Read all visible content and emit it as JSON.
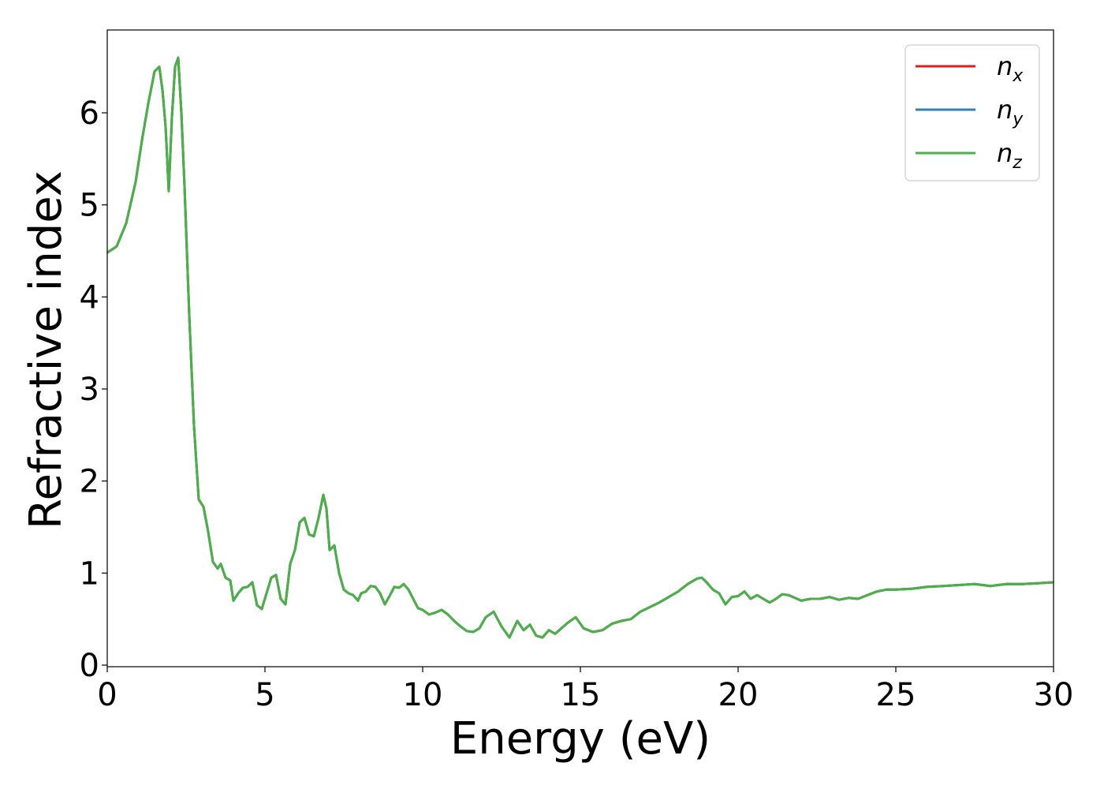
{
  "chart_data": {
    "type": "line",
    "xlabel": "Energy (eV)",
    "ylabel": "Refractive index",
    "xlim": [
      0,
      30
    ],
    "ylim": [
      0,
      6.9
    ],
    "xticks": [
      0,
      5,
      10,
      15,
      20,
      25,
      30
    ],
    "yticks": [
      0,
      1,
      2,
      3,
      4,
      5,
      6
    ],
    "grid": false,
    "legend_position": "top-right",
    "series": [
      {
        "name": "n_x",
        "label_base": "n",
        "label_sub": "x",
        "color": "#e41a1c"
      },
      {
        "name": "n_y",
        "label_base": "n",
        "label_sub": "y",
        "color": "#377eb8"
      },
      {
        "name": "n_z",
        "label_base": "n",
        "label_sub": "z",
        "color": "#4daf4a"
      }
    ],
    "x": [
      0,
      0.3,
      0.6,
      0.9,
      1.1,
      1.3,
      1.5,
      1.65,
      1.75,
      1.85,
      1.95,
      2.05,
      2.15,
      2.25,
      2.35,
      2.45,
      2.6,
      2.75,
      2.9,
      3.05,
      3.2,
      3.35,
      3.5,
      3.6,
      3.75,
      3.9,
      4.0,
      4.15,
      4.3,
      4.45,
      4.6,
      4.75,
      4.9,
      5.05,
      5.2,
      5.35,
      5.5,
      5.65,
      5.8,
      5.95,
      6.1,
      6.25,
      6.4,
      6.55,
      6.7,
      6.85,
      6.95,
      7.05,
      7.2,
      7.35,
      7.5,
      7.65,
      7.8,
      7.95,
      8.05,
      8.2,
      8.35,
      8.5,
      8.65,
      8.8,
      8.95,
      9.1,
      9.25,
      9.4,
      9.55,
      9.7,
      9.85,
      10.0,
      10.2,
      10.4,
      10.6,
      10.8,
      11.0,
      11.2,
      11.4,
      11.6,
      11.8,
      12.0,
      12.25,
      12.5,
      12.75,
      13.0,
      13.2,
      13.4,
      13.6,
      13.8,
      14.0,
      14.2,
      14.4,
      14.6,
      14.85,
      15.1,
      15.4,
      15.7,
      16.0,
      16.3,
      16.6,
      16.9,
      17.2,
      17.5,
      17.8,
      18.1,
      18.4,
      18.7,
      18.85,
      19.0,
      19.2,
      19.4,
      19.6,
      19.8,
      20.0,
      20.2,
      20.4,
      20.6,
      20.8,
      21.0,
      21.2,
      21.4,
      21.6,
      21.8,
      22.0,
      22.3,
      22.6,
      22.9,
      23.2,
      23.5,
      23.8,
      24.1,
      24.4,
      24.7,
      25.0,
      25.5,
      26.0,
      26.5,
      27.0,
      27.5,
      28.0,
      28.5,
      29.0,
      29.5,
      30.0
    ],
    "values": [
      4.48,
      4.55,
      4.8,
      5.25,
      5.7,
      6.1,
      6.45,
      6.5,
      6.25,
      5.85,
      5.15,
      5.95,
      6.5,
      6.6,
      6.0,
      5.2,
      3.8,
      2.6,
      1.8,
      1.72,
      1.45,
      1.12,
      1.05,
      1.1,
      0.95,
      0.92,
      0.7,
      0.78,
      0.84,
      0.85,
      0.9,
      0.65,
      0.61,
      0.78,
      0.95,
      0.98,
      0.72,
      0.66,
      1.1,
      1.25,
      1.55,
      1.6,
      1.42,
      1.4,
      1.6,
      1.85,
      1.7,
      1.25,
      1.3,
      1.0,
      0.82,
      0.78,
      0.76,
      0.7,
      0.78,
      0.8,
      0.86,
      0.85,
      0.78,
      0.66,
      0.75,
      0.85,
      0.84,
      0.88,
      0.82,
      0.72,
      0.62,
      0.6,
      0.55,
      0.57,
      0.6,
      0.55,
      0.48,
      0.42,
      0.37,
      0.36,
      0.4,
      0.52,
      0.58,
      0.42,
      0.3,
      0.48,
      0.38,
      0.44,
      0.32,
      0.3,
      0.38,
      0.34,
      0.4,
      0.46,
      0.52,
      0.4,
      0.36,
      0.38,
      0.45,
      0.48,
      0.5,
      0.58,
      0.63,
      0.68,
      0.74,
      0.8,
      0.88,
      0.94,
      0.95,
      0.9,
      0.82,
      0.78,
      0.66,
      0.74,
      0.75,
      0.8,
      0.72,
      0.76,
      0.72,
      0.68,
      0.72,
      0.77,
      0.76,
      0.73,
      0.7,
      0.72,
      0.72,
      0.74,
      0.71,
      0.73,
      0.72,
      0.76,
      0.8,
      0.82,
      0.82,
      0.83,
      0.85,
      0.86,
      0.87,
      0.88,
      0.86,
      0.88,
      0.88,
      0.89,
      0.9
    ]
  }
}
